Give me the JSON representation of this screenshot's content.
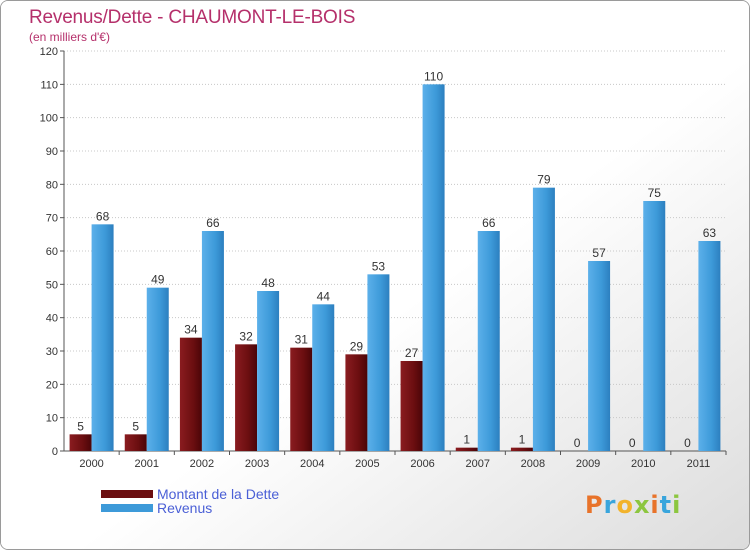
{
  "title": "Revenus/Dette - CHAUMONT-LE-BOIS",
  "subtitle": "(en milliers d'€)",
  "colors": {
    "title": "#b5306b",
    "dette": "#6b0e10",
    "revenus": "#3d9ad9",
    "legend_text": "#4a5fd6"
  },
  "legend": [
    {
      "label": "Montant de la Dette",
      "color": "#6b0e10"
    },
    {
      "label": "Revenus",
      "color": "#3d9ad9"
    }
  ],
  "logo_text": "Proxiti",
  "chart_data": {
    "type": "bar",
    "title": "Revenus/Dette - CHAUMONT-LE-BOIS",
    "subtitle": "(en milliers d'€)",
    "categories": [
      "2000",
      "2001",
      "2002",
      "2003",
      "2004",
      "2005",
      "2006",
      "2007",
      "2008",
      "2009",
      "2010",
      "2011"
    ],
    "series": [
      {
        "name": "Montant de la Dette",
        "values": [
          5,
          5,
          34,
          32,
          31,
          29,
          27,
          1,
          1,
          0,
          0,
          0
        ]
      },
      {
        "name": "Revenus",
        "values": [
          68,
          49,
          66,
          48,
          44,
          53,
          110,
          66,
          79,
          57,
          75,
          63
        ]
      }
    ],
    "ylim": [
      0,
      120
    ],
    "yticks": [
      0,
      10,
      20,
      30,
      40,
      50,
      60,
      70,
      80,
      90,
      100,
      110,
      120
    ],
    "grid": true,
    "legend_position": "bottom-left"
  }
}
